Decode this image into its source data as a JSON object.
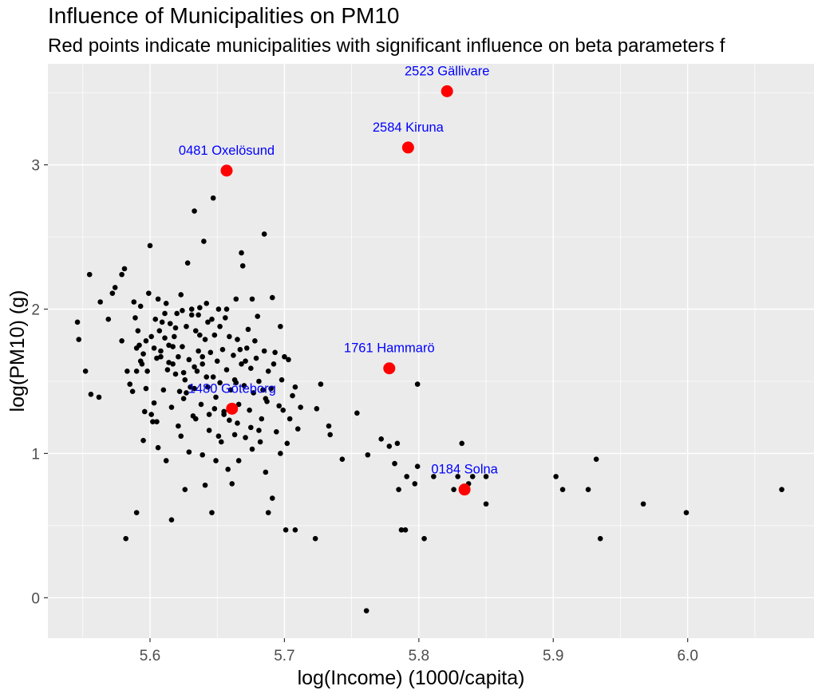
{
  "chart_data": {
    "type": "scatter",
    "title": "Influence of Municipalities on PM10",
    "subtitle": "Red points indicate municipalities with significant influence on beta parameters f",
    "xlabel": "log(Income) (1000/capita)",
    "ylabel": "log(PM10) (g)",
    "xlim": [
      5.524,
      6.094
    ],
    "ylim": [
      -0.28,
      3.7
    ],
    "xticks": [
      5.6,
      5.7,
      5.8,
      5.9,
      6.0
    ],
    "xtick_labels": [
      "5.6",
      "5.7",
      "5.8",
      "5.9",
      "6.0"
    ],
    "yticks": [
      0,
      1,
      2,
      3
    ],
    "ytick_labels": [
      "0",
      "1",
      "2",
      "3"
    ],
    "grid": true,
    "colors": {
      "points": "#000000",
      "influential": "#ff0000",
      "labels": "#0000ff",
      "panel": "#ebebeb"
    },
    "influential": [
      {
        "label": "2523 Gällivare",
        "x": 5.821,
        "y": 3.51
      },
      {
        "label": "2584 Kiruna",
        "x": 5.792,
        "y": 3.12
      },
      {
        "label": "0481 Oxelösund",
        "x": 5.657,
        "y": 2.96
      },
      {
        "label": "1761 Hammarö",
        "x": 5.778,
        "y": 1.59
      },
      {
        "label": "1480 Göteborg",
        "x": 5.661,
        "y": 1.31
      },
      {
        "label": "0184 Solna",
        "x": 5.834,
        "y": 0.75
      }
    ],
    "points": [
      [
        5.546,
        1.91
      ],
      [
        5.547,
        1.79
      ],
      [
        5.552,
        1.57
      ],
      [
        5.555,
        2.24
      ],
      [
        5.556,
        1.41
      ],
      [
        5.562,
        1.39
      ],
      [
        5.563,
        2.05
      ],
      [
        5.569,
        1.93
      ],
      [
        5.572,
        2.11
      ],
      [
        5.574,
        2.15
      ],
      [
        5.579,
        1.78
      ],
      [
        5.581,
        2.28
      ],
      [
        5.583,
        1.57
      ],
      [
        5.585,
        1.48
      ],
      [
        5.587,
        1.43
      ],
      [
        5.588,
        2.05
      ],
      [
        5.589,
        1.94
      ],
      [
        5.59,
        1.73
      ],
      [
        5.591,
        1.85
      ],
      [
        5.592,
        1.75
      ],
      [
        5.593,
        2.02
      ],
      [
        5.594,
        1.62
      ],
      [
        5.595,
        1.69
      ],
      [
        5.597,
        1.78
      ],
      [
        5.598,
        1.57
      ],
      [
        5.599,
        2.11
      ],
      [
        5.6,
        2.44
      ],
      [
        5.601,
        1.81
      ],
      [
        5.602,
        1.22
      ],
      [
        5.603,
        1.73
      ],
      [
        5.604,
        1.93
      ],
      [
        5.605,
        1.66
      ],
      [
        5.606,
        2.07
      ],
      [
        5.607,
        1.85
      ],
      [
        5.608,
        1.71
      ],
      [
        5.609,
        1.91
      ],
      [
        5.61,
        1.44
      ],
      [
        5.611,
        1.97
      ],
      [
        5.612,
        2.04
      ],
      [
        5.613,
        1.58
      ],
      [
        5.614,
        1.75
      ],
      [
        5.615,
        1.9
      ],
      [
        5.616,
        1.32
      ],
      [
        5.617,
        1.62
      ],
      [
        5.618,
        1.81
      ],
      [
        5.619,
        1.55
      ],
      [
        5.62,
        1.97
      ],
      [
        5.621,
        1.67
      ],
      [
        5.622,
        1.43
      ],
      [
        5.623,
        2.1
      ],
      [
        5.624,
        1.74
      ],
      [
        5.625,
        1.38
      ],
      [
        5.626,
        1.51
      ],
      [
        5.627,
        1.88
      ],
      [
        5.628,
        2.32
      ],
      [
        5.629,
        1.65
      ],
      [
        5.63,
        1.46
      ],
      [
        5.631,
        1.96
      ],
      [
        5.632,
        1.26
      ],
      [
        5.633,
        1.6
      ],
      [
        5.634,
        1.85
      ],
      [
        5.635,
        1.57
      ],
      [
        5.636,
        1.71
      ],
      [
        5.637,
        2.01
      ],
      [
        5.638,
        1.34
      ],
      [
        5.639,
        1.62
      ],
      [
        5.64,
        2.47
      ],
      [
        5.641,
        1.79
      ],
      [
        5.642,
        2.04
      ],
      [
        5.643,
        1.46
      ],
      [
        5.644,
        1.27
      ],
      [
        5.645,
        1.7
      ],
      [
        5.646,
        1.93
      ],
      [
        5.647,
        1.53
      ],
      [
        5.648,
        1.82
      ],
      [
        5.649,
        1.39
      ],
      [
        5.65,
        1.64
      ],
      [
        5.652,
        1.88
      ],
      [
        5.654,
        1.72
      ],
      [
        5.655,
        1.29
      ],
      [
        5.656,
        1.94
      ],
      [
        5.657,
        1.58
      ],
      [
        5.659,
        1.81
      ],
      [
        5.66,
        1.44
      ],
      [
        5.662,
        1.68
      ],
      [
        5.663,
        1.51
      ],
      [
        5.665,
        1.79
      ],
      [
        5.666,
        1.34
      ],
      [
        5.668,
        1.62
      ],
      [
        5.669,
        2.3
      ],
      [
        5.67,
        1.47
      ],
      [
        5.672,
        1.73
      ],
      [
        5.674,
        1.3
      ],
      [
        5.675,
        1.59
      ],
      [
        5.676,
        2.07
      ],
      [
        5.677,
        1.42
      ],
      [
        5.679,
        1.66
      ],
      [
        5.681,
        1.5
      ],
      [
        5.683,
        1.24
      ],
      [
        5.685,
        1.71
      ],
      [
        5.686,
        1.38
      ],
      [
        5.688,
        1.57
      ],
      [
        5.69,
        1.45
      ],
      [
        5.692,
        1.62
      ],
      [
        5.694,
        1.15
      ],
      [
        5.696,
        1.33
      ],
      [
        5.698,
        1.51
      ],
      [
        5.7,
        1.67
      ],
      [
        5.702,
        1.07
      ],
      [
        5.704,
        1.24
      ],
      [
        5.706,
        1.4
      ],
      [
        5.708,
        1.46
      ],
      [
        5.71,
        1.17
      ],
      [
        5.712,
        1.32
      ],
      [
        5.59,
        0.59
      ],
      [
        5.595,
        1.09
      ],
      [
        5.601,
        1.27
      ],
      [
        5.606,
        1.04
      ],
      [
        5.612,
        0.95
      ],
      [
        5.616,
        0.54
      ],
      [
        5.621,
        1.19
      ],
      [
        5.626,
        0.75
      ],
      [
        5.629,
        1.01
      ],
      [
        5.634,
        1.24
      ],
      [
        5.639,
        0.99
      ],
      [
        5.641,
        0.78
      ],
      [
        5.646,
        0.59
      ],
      [
        5.649,
        0.95
      ],
      [
        5.653,
        1.08
      ],
      [
        5.658,
        0.89
      ],
      [
        5.661,
        0.79
      ],
      [
        5.663,
        1.13
      ],
      [
        5.666,
        0.95
      ],
      [
        5.671,
        1.11
      ],
      [
        5.676,
        1.03
      ],
      [
        5.681,
        1.16
      ],
      [
        5.686,
        0.87
      ],
      [
        5.688,
        0.59
      ],
      [
        5.691,
        0.69
      ],
      [
        5.697,
        1.0
      ],
      [
        5.701,
        0.47
      ],
      [
        5.708,
        0.47
      ],
      [
        5.723,
        0.41
      ],
      [
        5.582,
        0.41
      ],
      [
        5.59,
        1.57
      ],
      [
        5.597,
        1.45
      ],
      [
        5.603,
        1.35
      ],
      [
        5.608,
        1.67
      ],
      [
        5.611,
        1.8
      ],
      [
        5.619,
        1.87
      ],
      [
        5.624,
        1.99
      ],
      [
        5.627,
        1.42
      ],
      [
        5.631,
        2.0
      ],
      [
        5.633,
        2.68
      ],
      [
        5.637,
        1.82
      ],
      [
        5.643,
        1.91
      ],
      [
        5.647,
        2.77
      ],
      [
        5.651,
        2.0
      ],
      [
        5.655,
        1.27
      ],
      [
        5.664,
        2.07
      ],
      [
        5.668,
        2.39
      ],
      [
        5.673,
        1.86
      ],
      [
        5.678,
        1.78
      ],
      [
        5.685,
        2.52
      ],
      [
        5.691,
        2.08
      ],
      [
        5.697,
        1.88
      ],
      [
        5.703,
        1.65
      ],
      [
        5.724,
        1.31
      ],
      [
        5.727,
        1.48
      ],
      [
        5.733,
        1.19
      ],
      [
        5.734,
        1.13
      ],
      [
        5.743,
        0.96
      ],
      [
        5.754,
        1.28
      ],
      [
        5.762,
        0.99
      ],
      [
        5.772,
        1.1
      ],
      [
        5.778,
        1.05
      ],
      [
        5.782,
        0.93
      ],
      [
        5.784,
        1.07
      ],
      [
        5.785,
        0.75
      ],
      [
        5.787,
        0.47
      ],
      [
        5.79,
        0.47
      ],
      [
        5.791,
        0.84
      ],
      [
        5.797,
        0.79
      ],
      [
        5.799,
        1.48
      ],
      [
        5.799,
        0.91
      ],
      [
        5.804,
        0.41
      ],
      [
        5.811,
        0.84
      ],
      [
        5.826,
        0.75
      ],
      [
        5.829,
        0.84
      ],
      [
        5.832,
        1.07
      ],
      [
        5.837,
        0.79
      ],
      [
        5.84,
        0.84
      ],
      [
        5.85,
        0.84
      ],
      [
        5.85,
        0.65
      ],
      [
        5.902,
        0.84
      ],
      [
        5.907,
        0.75
      ],
      [
        5.926,
        0.75
      ],
      [
        5.932,
        0.96
      ],
      [
        5.935,
        0.41
      ],
      [
        5.967,
        0.65
      ],
      [
        5.999,
        0.59
      ],
      [
        6.07,
        0.75
      ],
      [
        5.761,
        -0.09
      ],
      [
        5.579,
        2.24
      ],
      [
        5.593,
        1.64
      ],
      [
        5.617,
        1.74
      ],
      [
        5.636,
        1.96
      ],
      [
        5.648,
        1.31
      ],
      [
        5.659,
        1.23
      ],
      [
        5.664,
        1.49
      ],
      [
        5.671,
        1.64
      ],
      [
        5.675,
        1.18
      ],
      [
        5.682,
        1.08
      ],
      [
        5.687,
        1.36
      ],
      [
        5.693,
        1.7
      ],
      [
        5.699,
        1.3
      ],
      [
        5.605,
        1.22
      ],
      [
        5.625,
        1.56
      ],
      [
        5.644,
        1.16
      ],
      [
        5.652,
        1.49
      ],
      [
        5.667,
        1.72
      ],
      [
        5.68,
        1.95
      ],
      [
        5.623,
        1.12
      ],
      [
        5.614,
        1.63
      ],
      [
        5.639,
        1.67
      ],
      [
        5.657,
        2.0
      ],
      [
        5.665,
        1.21
      ],
      [
        5.684,
        1.44
      ],
      [
        5.596,
        1.29
      ],
      [
        5.633,
        1.45
      ],
      [
        5.642,
        1.53
      ],
      [
        5.651,
        1.12
      ]
    ]
  }
}
